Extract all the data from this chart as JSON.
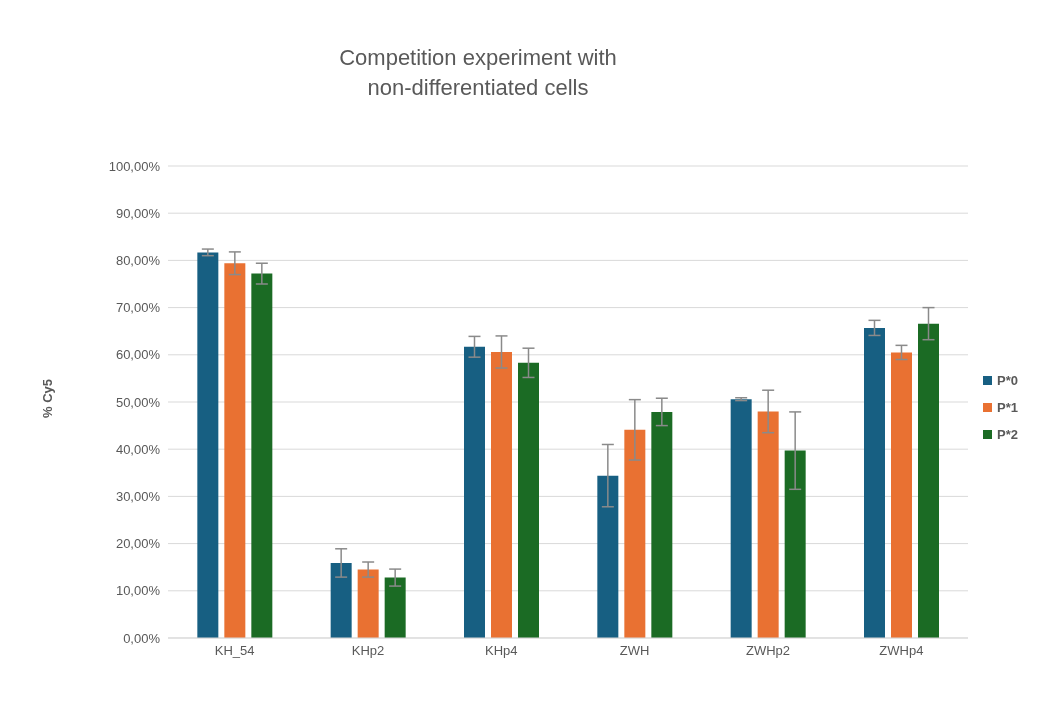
{
  "chart_data": {
    "type": "bar",
    "title": "Competition experiment with\nnon-differentiated cells",
    "ylabel": "% Cy5",
    "categories": [
      "KH_54",
      "KHp2",
      "KHp4",
      "ZWH",
      "ZWHp2",
      "ZWHp4"
    ],
    "series": [
      {
        "name": "P*0",
        "color": "#175f82",
        "values": [
          81.7,
          15.9,
          61.7,
          34.4,
          50.6,
          65.7
        ],
        "errors": [
          0.7,
          3.0,
          2.2,
          6.6,
          0.3,
          1.6
        ]
      },
      {
        "name": "P*1",
        "color": "#e97132",
        "values": [
          79.4,
          14.5,
          60.6,
          44.1,
          48.0,
          60.5
        ],
        "errors": [
          2.4,
          1.6,
          3.4,
          6.4,
          4.5,
          1.5
        ]
      },
      {
        "name": "P*2",
        "color": "#1b6b24",
        "values": [
          77.2,
          12.8,
          58.3,
          47.9,
          39.7,
          66.6
        ],
        "errors": [
          2.2,
          1.8,
          3.1,
          2.9,
          8.2,
          3.4
        ]
      }
    ],
    "ylim": [
      0,
      100
    ],
    "yticks": [
      {
        "value": 0,
        "label": "0,00%"
      },
      {
        "value": 10,
        "label": "10,00%"
      },
      {
        "value": 20,
        "label": "20,00%"
      },
      {
        "value": 30,
        "label": "30,00%"
      },
      {
        "value": 40,
        "label": "40,00%"
      },
      {
        "value": 50,
        "label": "50,00%"
      },
      {
        "value": 60,
        "label": "60,00%"
      },
      {
        "value": 70,
        "label": "70,00%"
      },
      {
        "value": 80,
        "label": "80,00%"
      },
      {
        "value": 90,
        "label": "90,00%"
      },
      {
        "value": 100,
        "label": "100,00%"
      }
    ],
    "grid": "y",
    "legend": "right"
  }
}
